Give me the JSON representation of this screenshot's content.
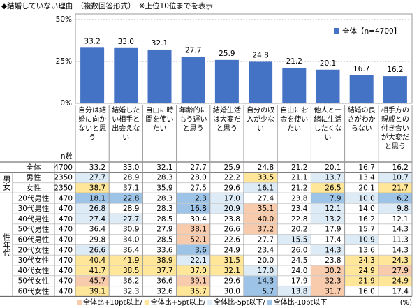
{
  "title": "◆結婚していない理由　（複数回答形式）　※上位10位までを表示",
  "chart_data": {
    "type": "bar",
    "categories": [
      "自分は結婚に向かないと思う",
      "結婚したい相手と出会えない",
      "自由に時間を使いたい",
      "年齢的にもう遅いと思う",
      "結婚生活は大変だと思う",
      "自分の収入が少ない",
      "自由にお金を使いたい",
      "他人と一緒に生活したくない",
      "結婚の良さがわからない",
      "相手方の親戚との付き合いが大変だと思う"
    ],
    "series": [
      {
        "name": "全体【n=4700】",
        "color": "#4472c4",
        "values": [
          33.2,
          33.0,
          32.1,
          27.7,
          25.9,
          24.8,
          21.2,
          20.1,
          16.7,
          16.2
        ],
        "value_labels": [
          "33.2",
          "33.0",
          "32.1",
          "27.7",
          "25.9",
          "24.8",
          "21.2",
          "20.1",
          "16.7",
          "16.2"
        ]
      }
    ],
    "ylim": [
      0,
      50
    ],
    "yticks": [
      {
        "value": 0,
        "label": "0%"
      },
      {
        "value": 25,
        "label": "25%"
      },
      {
        "value": 50,
        "label": "50%"
      }
    ],
    "grid": true
  },
  "table": {
    "n_header": "n数",
    "total": {
      "label": "全体",
      "n": 4700,
      "values": [
        "33.2",
        "33.0",
        "32.1",
        "27.7",
        "25.9",
        "24.8",
        "21.2",
        "20.1",
        "16.7",
        "16.2"
      ]
    },
    "groups": [
      {
        "label": "男女",
        "rows": [
          {
            "label": "男性",
            "n": 2350,
            "values": [
              "27.7",
              "28.9",
              "28.3",
              "28.0",
              "22.2",
              "33.5",
              "21.1",
              "13.7",
              "13.4",
              "10.7"
            ]
          },
          {
            "label": "女性",
            "n": 2350,
            "values": [
              "38.7",
              "37.1",
              "35.9",
              "27.5",
              "29.6",
              "16.1",
              "21.2",
              "26.5",
              "20.1",
              "21.7"
            ]
          }
        ]
      },
      {
        "label": "性年代",
        "rows": [
          {
            "label": "20代男性",
            "n": 470,
            "values": [
              "18.1",
              "22.8",
              "28.3",
              "2.3",
              "17.0",
              "27.4",
              "23.8",
              "7.9",
              "10.0",
              "6.2"
            ]
          },
          {
            "label": "30代男性",
            "n": 470,
            "values": [
              "26.8",
              "28.9",
              "28.3",
              "16.8",
              "20.9",
              "35.1",
              "23.4",
              "12.1",
              "14.0",
              "9.8"
            ]
          },
          {
            "label": "40代男性",
            "n": 470,
            "values": [
              "27.4",
              "27.7",
              "28.5",
              "30.4",
              "23.8",
              "40.0",
              "22.8",
              "13.2",
              "16.2",
              "12.1"
            ]
          },
          {
            "label": "50代男性",
            "n": 470,
            "values": [
              "36.4",
              "30.9",
              "27.9",
              "38.1",
              "26.6",
              "37.2",
              "20.2",
              "17.9",
              "15.7",
              "14.3"
            ]
          },
          {
            "label": "60代男性",
            "n": 470,
            "values": [
              "29.8",
              "34.0",
              "28.5",
              "52.1",
              "22.6",
              "27.7",
              "15.5",
              "17.4",
              "10.9",
              "11.3"
            ]
          },
          {
            "label": "20代女性",
            "n": 470,
            "values": [
              "26.6",
              "36.4",
              "33.6",
              "3.6",
              "24.9",
              "23.4",
              "26.0",
              "14.3",
              "13.6",
              "14.3"
            ]
          },
          {
            "label": "30代女性",
            "n": 470,
            "values": [
              "40.4",
              "41.9",
              "38.9",
              "22.1",
              "31.5",
              "20.0",
              "24.5",
              "23.8",
              "24.3",
              "24.3"
            ]
          },
          {
            "label": "40代女性",
            "n": 470,
            "values": [
              "41.7",
              "38.5",
              "37.7",
              "37.0",
              "32.1",
              "17.0",
              "24.0",
              "30.2",
              "24.9",
              "27.9"
            ]
          },
          {
            "label": "50代女性",
            "n": 470,
            "values": [
              "45.7",
              "36.2",
              "36.6",
              "39.1",
              "29.6",
              "14.3",
              "17.9",
              "32.3",
              "21.9",
              "24.9"
            ]
          },
          {
            "label": "60代女性",
            "n": 470,
            "values": [
              "39.1",
              "32.3",
              "32.6",
              "35.7",
              "30.0",
              "5.7",
              "13.8",
              "31.7",
              "16.0",
              "17.4"
            ]
          }
        ]
      }
    ],
    "highlights": [
      {
        "value": 10,
        "label": "全体比+10pt以上/",
        "color": "#f8cbad"
      },
      {
        "value": 5,
        "label": "全体比+5pt以上/",
        "color": "#ffe699"
      },
      {
        "value": -5,
        "label": "全体比-5pt以下/",
        "color": "#ddebf7"
      },
      {
        "value": -10,
        "label": "全体比-10pt以下",
        "color": "#9dc3e6"
      }
    ],
    "unit": "(%)"
  }
}
